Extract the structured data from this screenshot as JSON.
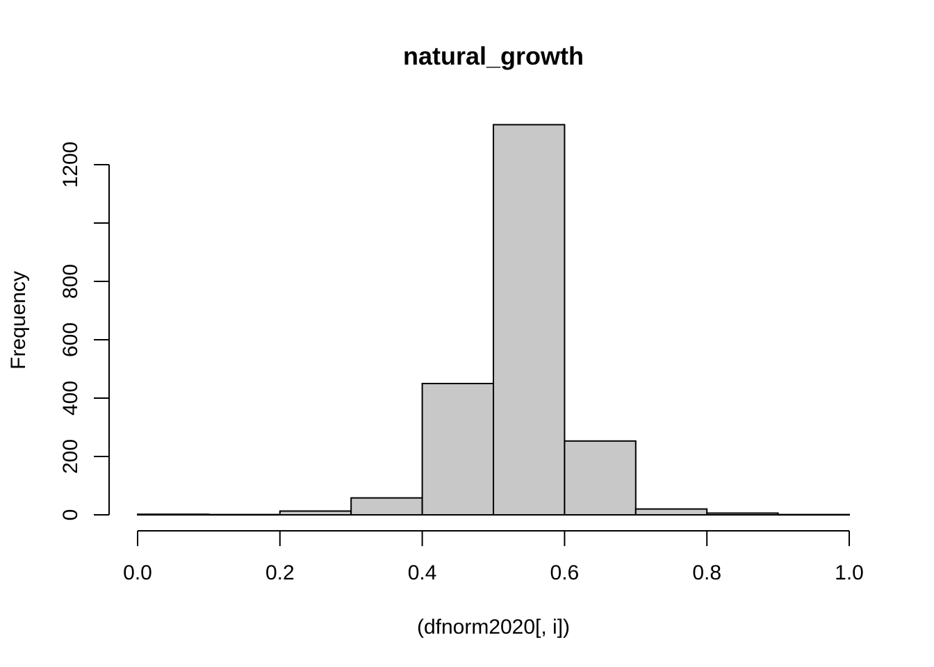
{
  "chart_data": {
    "type": "bar",
    "title": "natural_growth",
    "xlabel": "(dfnorm2020[, i])",
    "ylabel": "Frequency",
    "bins": [
      {
        "from": 0.0,
        "to": 0.1,
        "count": 2
      },
      {
        "from": 0.1,
        "to": 0.2,
        "count": 1
      },
      {
        "from": 0.2,
        "to": 0.3,
        "count": 13
      },
      {
        "from": 0.3,
        "to": 0.4,
        "count": 58
      },
      {
        "from": 0.4,
        "to": 0.5,
        "count": 450
      },
      {
        "from": 0.5,
        "to": 0.6,
        "count": 1337
      },
      {
        "from": 0.6,
        "to": 0.7,
        "count": 253
      },
      {
        "from": 0.7,
        "to": 0.8,
        "count": 20
      },
      {
        "from": 0.8,
        "to": 0.9,
        "count": 6
      },
      {
        "from": 0.9,
        "to": 1.0,
        "count": 1
      }
    ],
    "xlim": [
      0,
      1
    ],
    "ylim": [
      0,
      1337
    ],
    "x_ticks": [
      "0.0",
      "0.2",
      "0.4",
      "0.6",
      "0.8",
      "1.0"
    ],
    "y_ticks": [
      0,
      200,
      400,
      600,
      800,
      1000,
      1200
    ],
    "y_tick_labels": [
      "0",
      "200",
      "400",
      "600",
      "800",
      "",
      "1200"
    ],
    "grid": false,
    "bar_color": "#c8c8c8"
  }
}
